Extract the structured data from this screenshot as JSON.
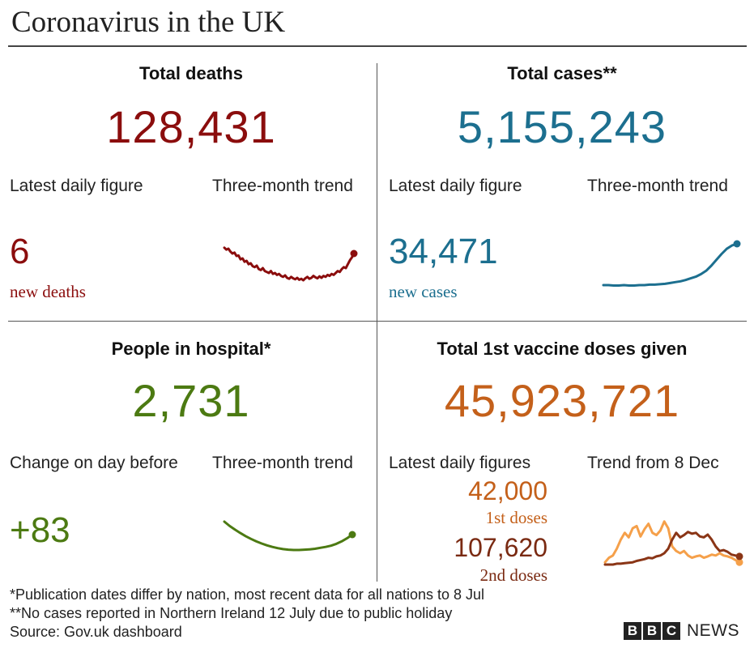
{
  "title": "Coronavirus in the UK",
  "panels": {
    "deaths": {
      "heading": "Total deaths",
      "total": "128,431",
      "daily_label": "Latest daily figure",
      "trend_label": "Three-month trend",
      "daily_value": "6",
      "daily_sub": "new deaths",
      "color": "#8b0d0d"
    },
    "cases": {
      "heading": "Total cases**",
      "total": "5,155,243",
      "daily_label": "Latest daily figure",
      "trend_label": "Three-month trend",
      "daily_value": "34,471",
      "daily_sub": "new cases",
      "color": "#1c6f8f"
    },
    "hospital": {
      "heading": "People in hospital*",
      "total": "2,731",
      "daily_label": "Change on day before",
      "trend_label": "Three-month trend",
      "daily_value": "+83",
      "color": "#4c7a12"
    },
    "vaccine": {
      "heading": "Total 1st vaccine doses given",
      "total": "45,923,721",
      "daily_label": "Latest daily figures",
      "trend_label": "Trend from 8 Dec",
      "first_value": "42,000",
      "first_sub": "1st doses",
      "second_value": "107,620",
      "second_sub": "2nd doses",
      "color_first": "#f5a04a",
      "color_second": "#8a3516",
      "color_total": "#c4601a"
    }
  },
  "chart_data": [
    {
      "type": "line",
      "name": "deaths-three-month-trend",
      "y": [
        0.82,
        0.78,
        0.8,
        0.74,
        0.7,
        0.72,
        0.65,
        0.66,
        0.58,
        0.6,
        0.53,
        0.55,
        0.48,
        0.5,
        0.44,
        0.42,
        0.45,
        0.38,
        0.36,
        0.4,
        0.34,
        0.32,
        0.3,
        0.34,
        0.28,
        0.3,
        0.26,
        0.28,
        0.24,
        0.22,
        0.25,
        0.2,
        0.18,
        0.22,
        0.19,
        0.17,
        0.2,
        0.16,
        0.18,
        0.15,
        0.19,
        0.22,
        0.18,
        0.2,
        0.24,
        0.21,
        0.19,
        0.23,
        0.2,
        0.24,
        0.22,
        0.26,
        0.24,
        0.28,
        0.26,
        0.3,
        0.34,
        0.32,
        0.38,
        0.42,
        0.4,
        0.48,
        0.56,
        0.62,
        0.7
      ]
    },
    {
      "type": "line",
      "name": "cases-three-month-trend",
      "y": [
        0.02,
        0.02,
        0.01,
        0.01,
        0.02,
        0.01,
        0.01,
        0.02,
        0.02,
        0.03,
        0.03,
        0.04,
        0.05,
        0.07,
        0.09,
        0.11,
        0.14,
        0.18,
        0.22,
        0.28,
        0.36,
        0.48,
        0.62,
        0.76,
        0.88,
        0.96,
        1.0
      ]
    },
    {
      "type": "line",
      "name": "hospital-three-month-trend",
      "y": [
        0.92,
        0.78,
        0.66,
        0.55,
        0.45,
        0.36,
        0.28,
        0.21,
        0.15,
        0.1,
        0.06,
        0.03,
        0.01,
        0.0,
        0.0,
        0.01,
        0.02,
        0.04,
        0.07,
        0.1,
        0.14,
        0.2,
        0.28,
        0.38,
        0.5
      ]
    },
    {
      "type": "line",
      "name": "vaccine-trend-from-8-dec",
      "series": [
        {
          "name": "1st doses",
          "y": [
            0.05,
            0.15,
            0.2,
            0.35,
            0.55,
            0.7,
            0.6,
            0.8,
            0.85,
            0.62,
            0.78,
            0.9,
            0.7,
            0.65,
            0.75,
            0.95,
            0.8,
            0.4,
            0.3,
            0.25,
            0.3,
            0.2,
            0.15,
            0.18,
            0.2,
            0.15,
            0.18,
            0.22,
            0.2,
            0.25,
            0.2,
            0.18,
            0.15,
            0.1,
            0.05
          ]
        },
        {
          "name": "2nd doses",
          "y": [
            0.0,
            0.0,
            0.0,
            0.02,
            0.02,
            0.03,
            0.04,
            0.05,
            0.08,
            0.1,
            0.12,
            0.15,
            0.14,
            0.18,
            0.2,
            0.25,
            0.35,
            0.55,
            0.7,
            0.6,
            0.65,
            0.72,
            0.68,
            0.7,
            0.62,
            0.6,
            0.66,
            0.55,
            0.4,
            0.3,
            0.32,
            0.28,
            0.22,
            0.2,
            0.18
          ]
        }
      ]
    }
  ],
  "footnotes": {
    "note1": "*Publication dates differ by nation, most recent data for all nations to 8 Jul",
    "note2": "**No cases reported in Northern Ireland 12 July due to public holiday",
    "source": "Source: Gov.uk dashboard"
  },
  "brand": {
    "letters": [
      "B",
      "B",
      "C"
    ],
    "news": "NEWS"
  }
}
